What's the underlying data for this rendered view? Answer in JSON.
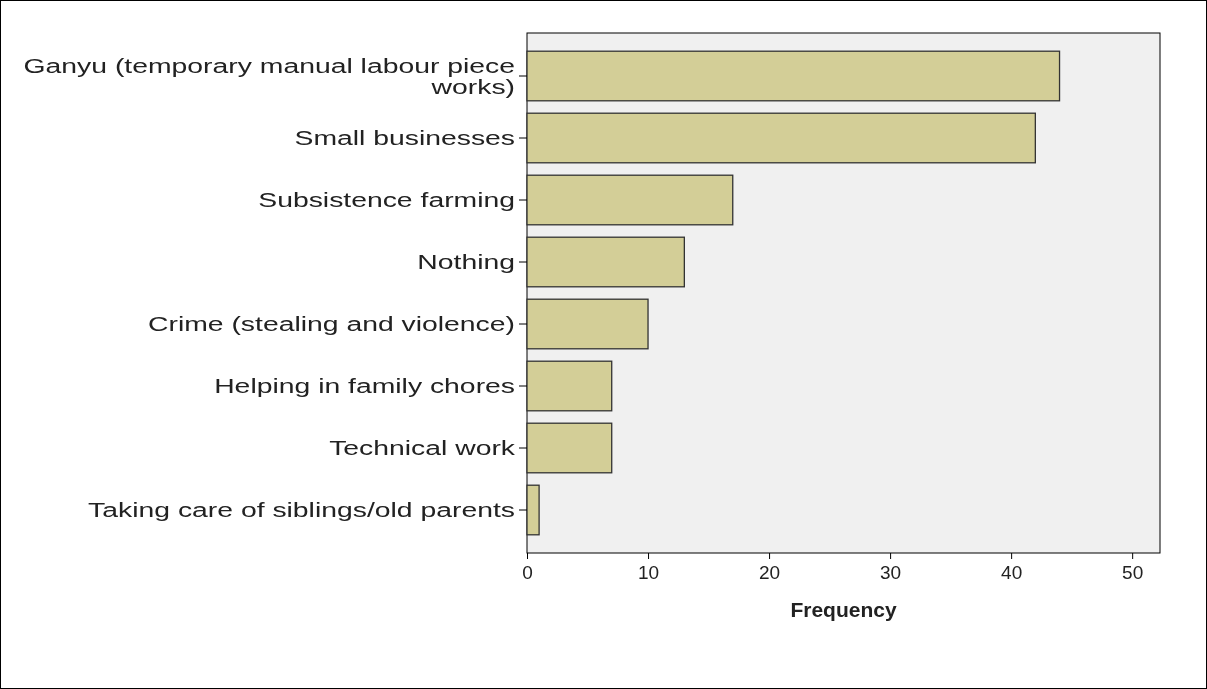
{
  "chart_data": {
    "type": "bar",
    "orientation": "horizontal",
    "xlabel": "Frequency",
    "categories": [
      "Ganyu (temporary manual labour piece works)",
      "Small businesses",
      "Subsistence farming",
      "Nothing",
      "Crime (stealing and violence)",
      "Helping in family chores",
      "Technical work",
      "Taking care of siblings/old parents"
    ],
    "values": [
      44,
      42,
      17,
      13,
      10,
      7,
      7,
      1
    ],
    "color": "#d3ce97",
    "xlim": [
      0,
      52.3
    ],
    "xticks": [
      0,
      10,
      20,
      30,
      40,
      50
    ],
    "grid": false
  }
}
